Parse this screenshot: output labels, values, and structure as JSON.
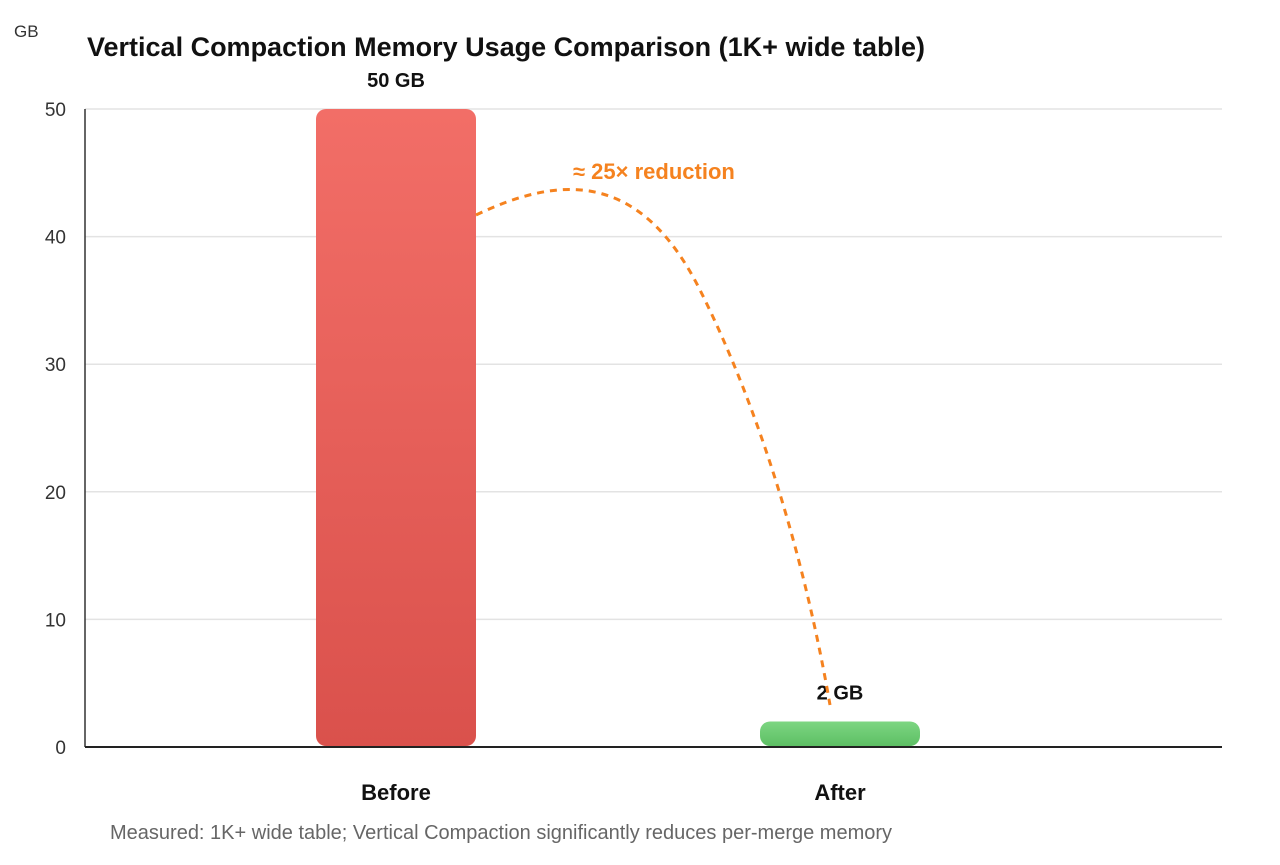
{
  "chart_data": {
    "type": "bar",
    "title": "Vertical Compaction Memory Usage Comparison (1K+ wide table)",
    "ylabel": "GB",
    "xlabel": "",
    "categories": [
      "Before",
      "After"
    ],
    "values": [
      50,
      2
    ],
    "data_labels": [
      "50 GB",
      "2 GB"
    ],
    "ylim": [
      0,
      50
    ],
    "yticks": [
      0,
      10,
      20,
      30,
      40,
      50
    ],
    "grid": true,
    "bar_colors": [
      "#e85e58",
      "#6ccb72"
    ],
    "annotation": {
      "text": "≈ 25× reduction",
      "color": "#f5821f",
      "style": "dashed curved arrow from Before to After"
    },
    "footnote": "Measured: 1K+ wide table; Vertical Compaction significantly reduces per-merge memory"
  }
}
